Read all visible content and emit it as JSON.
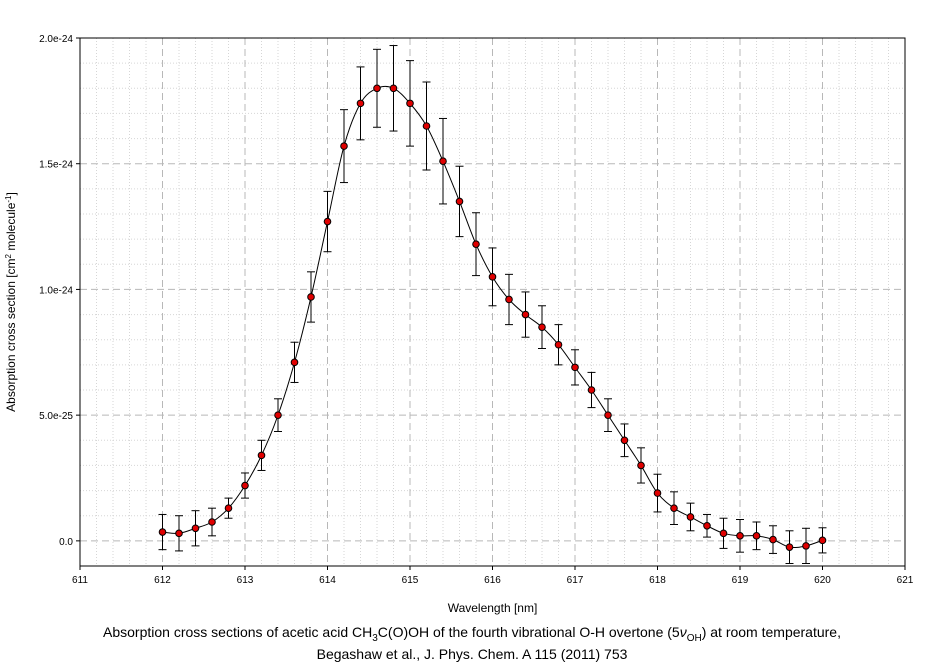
{
  "chart_data": {
    "type": "scatter",
    "xlabel": "Wavelength [nm]",
    "ylabel": "Absorption cross section [cm",
    "ylabel_sup1": "2",
    "ylabel_mid": " molecule",
    "ylabel_sup2": "-1",
    "ylabel_end": "]",
    "xlim": [
      611,
      621
    ],
    "ylim": [
      -1e-25,
      2e-24
    ],
    "x_ticks": [
      611,
      612,
      613,
      614,
      615,
      616,
      617,
      618,
      619,
      620,
      621
    ],
    "x_tick_labels": [
      "611",
      "612",
      "613",
      "614",
      "615",
      "616",
      "617",
      "618",
      "619",
      "620",
      "621"
    ],
    "y_ticks": [
      0,
      5e-25,
      1e-24,
      1.5e-24,
      2e-24
    ],
    "y_tick_labels": [
      "0.0",
      "5.0e-25",
      "1.0e-24",
      "1.5e-24",
      "2.0e-24"
    ],
    "grid": true,
    "marker_color": "#e00000",
    "line_color": "#000000",
    "series": [
      {
        "x": [
          612.0,
          612.2,
          612.4,
          612.6,
          612.8,
          613.0,
          613.2,
          613.4,
          613.6,
          613.8,
          614.0,
          614.2,
          614.4,
          614.6,
          614.8,
          615.0,
          615.2,
          615.4,
          615.6,
          615.8,
          616.0,
          616.2,
          616.4,
          616.6,
          616.8,
          617.0,
          617.2,
          617.4,
          617.6,
          617.8,
          618.0,
          618.2,
          618.4,
          618.6,
          618.8,
          619.0,
          619.2,
          619.4,
          619.6,
          619.8,
          620.0
        ],
        "y": [
          3.5e-26,
          3e-26,
          5e-26,
          7.5e-26,
          1.3e-25,
          2.2e-25,
          3.4e-25,
          5e-25,
          7.1e-25,
          9.7e-25,
          1.27e-24,
          1.57e-24,
          1.74e-24,
          1.8e-24,
          1.8e-24,
          1.74e-24,
          1.65e-24,
          1.51e-24,
          1.35e-24,
          1.18e-24,
          1.05e-24,
          9.6e-25,
          9e-25,
          8.5e-25,
          7.8e-25,
          6.9e-25,
          6e-25,
          5e-25,
          4e-25,
          3e-25,
          1.9e-25,
          1.3e-25,
          9.5e-26,
          6e-26,
          3e-26,
          2e-26,
          2e-26,
          5e-27,
          -2.5e-26,
          -2e-26,
          2e-27
        ],
        "yerr": [
          7e-26,
          7e-26,
          7e-26,
          5.5e-26,
          4e-26,
          5e-26,
          6e-26,
          6.5e-26,
          8e-26,
          1e-25,
          1.2e-25,
          1.45e-25,
          1.45e-25,
          1.55e-25,
          1.7e-25,
          1.7e-25,
          1.75e-25,
          1.7e-25,
          1.4e-25,
          1.25e-25,
          1.15e-25,
          1e-25,
          9e-26,
          8.5e-26,
          8e-26,
          7e-26,
          7e-26,
          6.5e-26,
          6.5e-26,
          7e-26,
          7.5e-26,
          6.5e-26,
          5.5e-26,
          4.5e-26,
          6e-26,
          6.5e-26,
          5.5e-26,
          5.5e-26,
          6.5e-26,
          7e-26,
          5e-26
        ]
      }
    ]
  },
  "caption": {
    "line1_part1": "Absorption cross sections of acetic acid CH",
    "line1_sub1": "3",
    "line1_part2": "C(O)OH of the fourth vibrational O-H overtone (5",
    "line1_nu": "ν",
    "line1_sub2": "OH",
    "line1_part3": ") at room temperature,",
    "line2": "Begashaw et al., J. Phys. Chem. A 115 (2011) 753"
  }
}
